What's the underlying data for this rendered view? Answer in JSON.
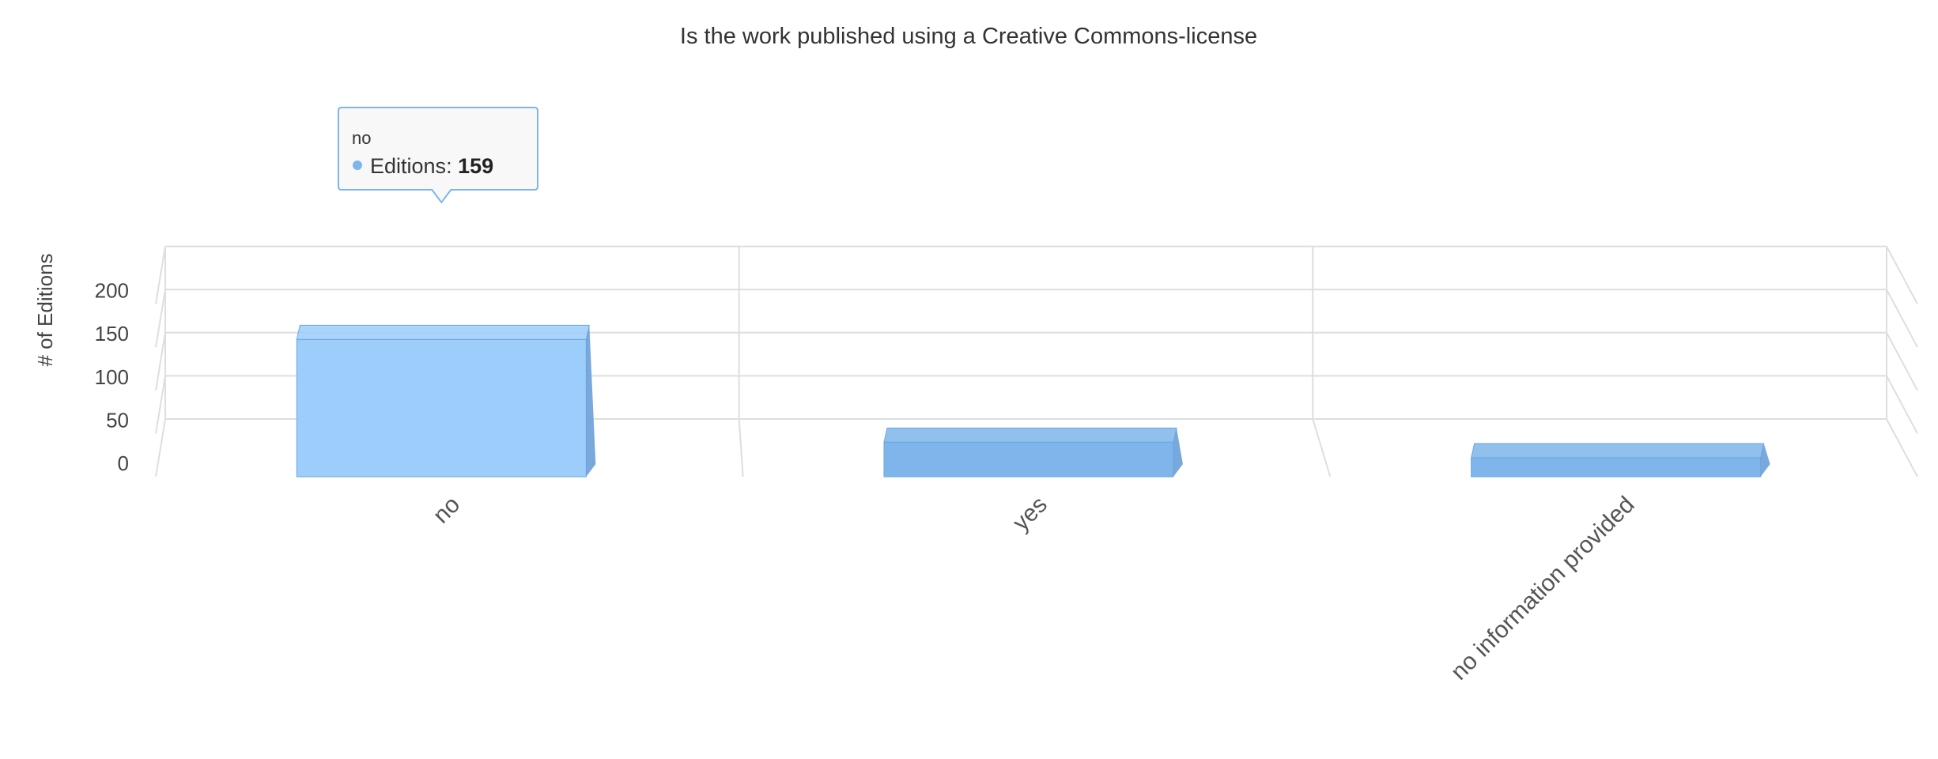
{
  "chart_data": {
    "type": "bar",
    "title": "Is the work published using a Creative Commons-license",
    "ylabel": "# of Editions",
    "xlabel": "",
    "categories": [
      "no",
      "yes",
      "no information provided"
    ],
    "series": [
      {
        "name": "Editions",
        "values": [
          159,
          40,
          22
        ],
        "color": "#7eb5ea",
        "highlight_color": "#9ccdfb"
      }
    ],
    "ylim": [
      0,
      200
    ],
    "yticks": [
      0,
      50,
      100,
      150,
      200
    ],
    "grid": true,
    "legend": "none",
    "tooltip": {
      "category": "no",
      "series_label": "Editions",
      "separator": ": ",
      "value": "159"
    }
  }
}
